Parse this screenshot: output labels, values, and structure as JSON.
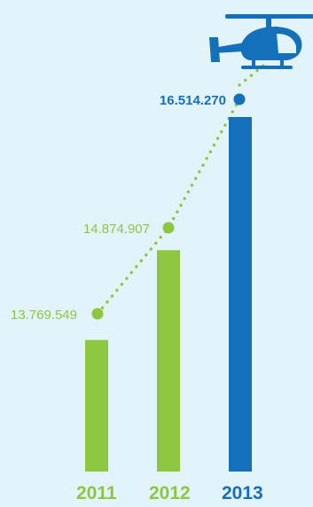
{
  "colors": {
    "background": "#e2f3fb",
    "green": "#8dc63f",
    "blue": "#1370b9"
  },
  "decoration": {
    "icon": "helicopter-icon"
  },
  "chart_data": {
    "type": "bar",
    "categories": [
      "2011",
      "2012",
      "2013"
    ],
    "values": [
      13769549,
      14874907,
      16514270
    ],
    "value_labels": [
      "13.769.549",
      "14.874.907",
      "16.514.270"
    ],
    "highlight_index": 2,
    "trend_line": "dotted",
    "grid": false,
    "legend": "none"
  }
}
